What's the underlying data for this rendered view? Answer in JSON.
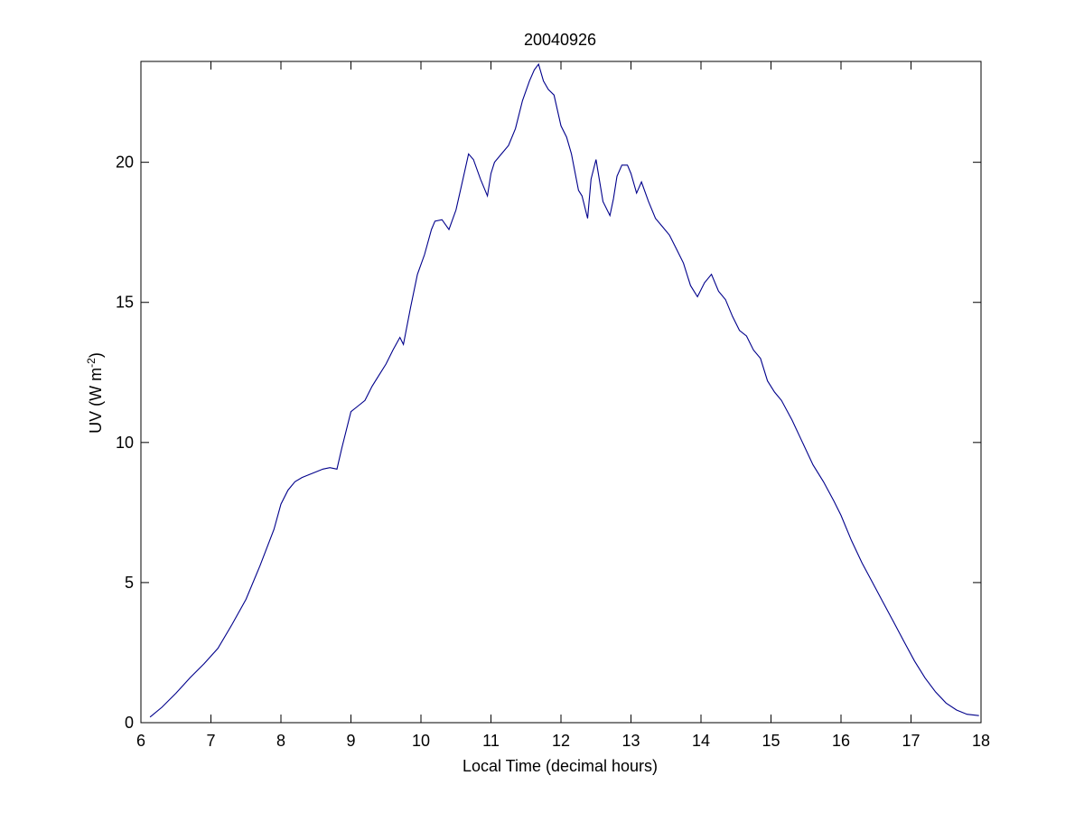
{
  "chart_data": {
    "type": "line",
    "title": "20040926",
    "xlabel": "Local Time (decimal hours)",
    "ylabel": {
      "main": "UV (W m",
      "superscript": "-2",
      "close": ")"
    },
    "xlim": [
      6,
      18
    ],
    "ylim": [
      0,
      23.6
    ],
    "xticks": [
      6,
      7,
      8,
      9,
      10,
      11,
      12,
      13,
      14,
      15,
      16,
      17,
      18
    ],
    "yticks": [
      0,
      5,
      10,
      15,
      20
    ],
    "grid": false,
    "line_color": "#00008b",
    "series": [
      {
        "x": [
          6.13,
          6.3,
          6.5,
          6.7,
          6.9,
          7.1,
          7.3,
          7.5,
          7.7,
          7.9,
          8.0,
          8.1,
          8.2,
          8.3,
          8.4,
          8.5,
          8.6,
          8.7,
          8.8,
          8.87,
          9.0,
          9.1,
          9.2,
          9.3,
          9.4,
          9.5,
          9.6,
          9.7,
          9.75,
          9.85,
          9.95,
          10.05,
          10.15,
          10.2,
          10.3,
          10.4,
          10.5,
          10.6,
          10.68,
          10.75,
          10.85,
          10.95,
          11.0,
          11.05,
          11.15,
          11.25,
          11.35,
          11.45,
          11.55,
          11.62,
          11.68,
          11.75,
          11.82,
          11.9,
          12.0,
          12.08,
          12.15,
          12.25,
          12.3,
          12.38,
          12.43,
          12.5,
          12.6,
          12.7,
          12.75,
          12.8,
          12.87,
          12.95,
          13.0,
          13.08,
          13.15,
          13.25,
          13.35,
          13.45,
          13.55,
          13.65,
          13.75,
          13.85,
          13.95,
          14.05,
          14.15,
          14.25,
          14.35,
          14.45,
          14.55,
          14.65,
          14.75,
          14.85,
          14.95,
          15.05,
          15.15,
          15.3,
          15.45,
          15.6,
          15.75,
          15.9,
          16.0,
          16.15,
          16.3,
          16.45,
          16.6,
          16.75,
          16.9,
          17.05,
          17.2,
          17.35,
          17.5,
          17.65,
          17.8,
          17.97
        ],
        "y": [
          0.2,
          0.55,
          1.05,
          1.6,
          2.1,
          2.65,
          3.5,
          4.4,
          5.6,
          6.9,
          7.8,
          8.3,
          8.6,
          8.75,
          8.85,
          8.95,
          9.05,
          9.1,
          9.05,
          9.8,
          11.1,
          11.3,
          11.5,
          12.0,
          12.4,
          12.8,
          13.3,
          13.75,
          13.5,
          14.8,
          16.0,
          16.7,
          17.6,
          17.9,
          17.95,
          17.6,
          18.3,
          19.4,
          20.3,
          20.1,
          19.4,
          18.8,
          19.6,
          20.0,
          20.3,
          20.6,
          21.2,
          22.2,
          22.9,
          23.3,
          23.5,
          22.9,
          22.6,
          22.4,
          21.3,
          20.9,
          20.3,
          19.0,
          18.8,
          18.0,
          19.4,
          20.1,
          18.6,
          18.1,
          18.7,
          19.5,
          19.9,
          19.9,
          19.6,
          18.9,
          19.3,
          18.6,
          18.0,
          17.7,
          17.4,
          16.9,
          16.4,
          15.6,
          15.2,
          15.7,
          16.0,
          15.4,
          15.1,
          14.5,
          14.0,
          13.8,
          13.3,
          13.0,
          12.2,
          11.8,
          11.5,
          10.8,
          10.0,
          9.2,
          8.6,
          7.9,
          7.4,
          6.5,
          5.7,
          5.0,
          4.3,
          3.6,
          2.9,
          2.2,
          1.6,
          1.1,
          0.7,
          0.45,
          0.3,
          0.25
        ]
      }
    ]
  }
}
